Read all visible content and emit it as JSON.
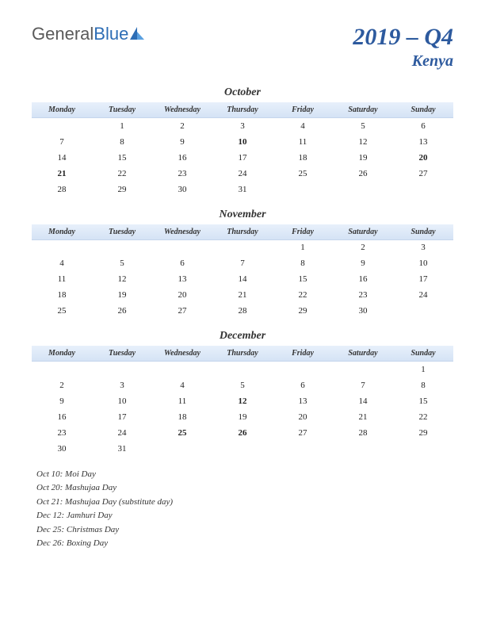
{
  "logo": {
    "part1": "General",
    "part2": "Blue"
  },
  "title": {
    "period": "2019 – Q4",
    "country": "Kenya"
  },
  "colors": {
    "title_color": "#2d5a9e",
    "holiday_color": "#c02020",
    "header_bg_top": "#e8f0fb",
    "header_bg_bottom": "#d5e3f5"
  },
  "day_headers": [
    "Monday",
    "Tuesday",
    "Wednesday",
    "Thursday",
    "Friday",
    "Saturday",
    "Sunday"
  ],
  "months": [
    {
      "name": "October",
      "weeks": [
        [
          "",
          "1",
          "2",
          "3",
          "4",
          "5",
          "6"
        ],
        [
          "7",
          "8",
          "9",
          "10",
          "11",
          "12",
          "13"
        ],
        [
          "14",
          "15",
          "16",
          "17",
          "18",
          "19",
          "20"
        ],
        [
          "21",
          "22",
          "23",
          "24",
          "25",
          "26",
          "27"
        ],
        [
          "28",
          "29",
          "30",
          "31",
          "",
          "",
          ""
        ]
      ],
      "holidays": [
        "10",
        "20",
        "21"
      ]
    },
    {
      "name": "November",
      "weeks": [
        [
          "",
          "",
          "",
          "",
          "1",
          "2",
          "3"
        ],
        [
          "4",
          "5",
          "6",
          "7",
          "8",
          "9",
          "10"
        ],
        [
          "11",
          "12",
          "13",
          "14",
          "15",
          "16",
          "17"
        ],
        [
          "18",
          "19",
          "20",
          "21",
          "22",
          "23",
          "24"
        ],
        [
          "25",
          "26",
          "27",
          "28",
          "29",
          "30",
          ""
        ]
      ],
      "holidays": []
    },
    {
      "name": "December",
      "weeks": [
        [
          "",
          "",
          "",
          "",
          "",
          "",
          "1"
        ],
        [
          "2",
          "3",
          "4",
          "5",
          "6",
          "7",
          "8"
        ],
        [
          "9",
          "10",
          "11",
          "12",
          "13",
          "14",
          "15"
        ],
        [
          "16",
          "17",
          "18",
          "19",
          "20",
          "21",
          "22"
        ],
        [
          "23",
          "24",
          "25",
          "26",
          "27",
          "28",
          "29"
        ],
        [
          "30",
          "31",
          "",
          "",
          "",
          "",
          ""
        ]
      ],
      "holidays": [
        "12",
        "25",
        "26"
      ]
    }
  ],
  "holiday_list": [
    "Oct 10: Moi Day",
    "Oct 20: Mashujaa Day",
    "Oct 21: Mashujaa Day (substitute day)",
    "Dec 12: Jamhuri Day",
    "Dec 25: Christmas Day",
    "Dec 26: Boxing Day"
  ]
}
